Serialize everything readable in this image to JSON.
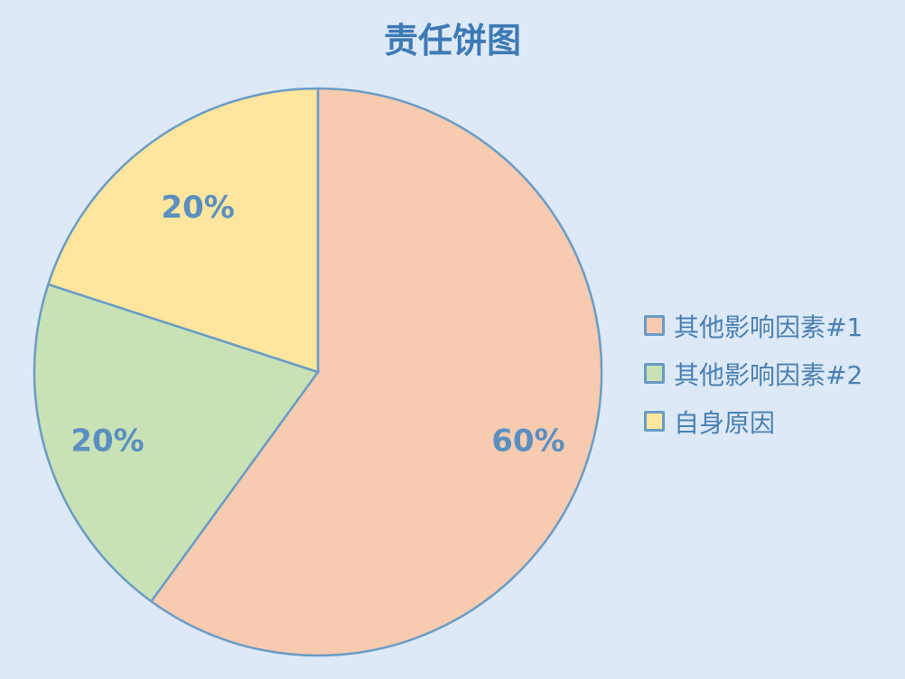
{
  "chart_data": {
    "type": "pie",
    "title": "责任饼图",
    "slices": [
      {
        "label": "其他影响因素#1",
        "value": 60,
        "data_label": "60%",
        "color": "#f7cbb0"
      },
      {
        "label": "其他影响因素#2",
        "value": 20,
        "data_label": "20%",
        "color": "#c8e2b6"
      },
      {
        "label": "自身原因",
        "value": 20,
        "data_label": "20%",
        "color": "#fee69e"
      }
    ],
    "start_angle": "12 o'clock",
    "direction": "clockwise",
    "legend_position": "right",
    "stroke_color": "#6a9cc6",
    "label_color": "#5a8fc0",
    "background": "#dde9f6"
  }
}
